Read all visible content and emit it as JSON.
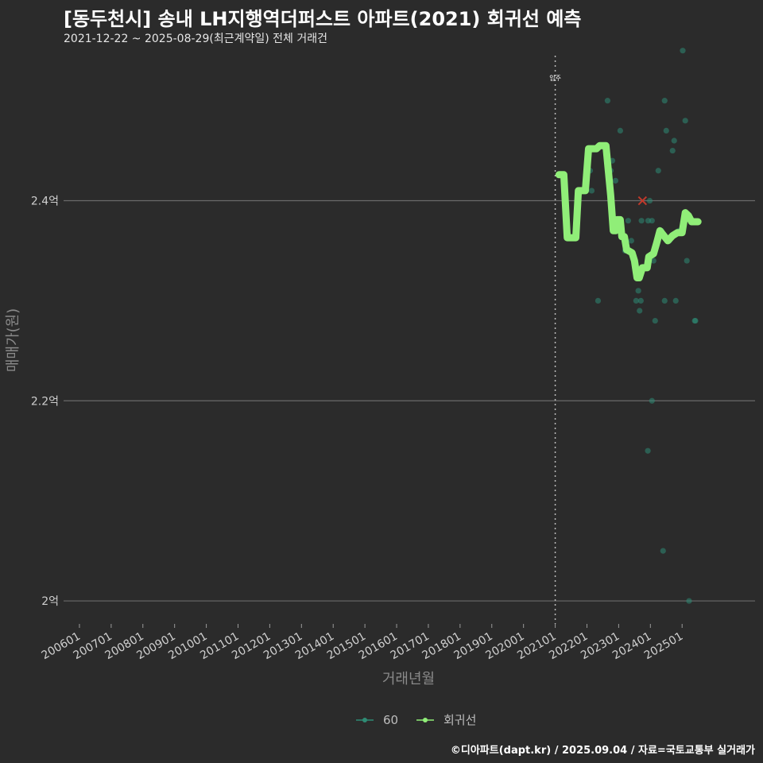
{
  "header": {
    "title": "[동두천시] 송내 LH지행역더퍼스트 아파트(2021) 회귀선 예측",
    "subtitle": "2021-12-22 ~ 2025-08-29(최근계약일) 전체 거래건"
  },
  "footer": {
    "credit": "©디아파트(dapt.kr) / 2025.09.04 / 자료=국토교통부 실거래가"
  },
  "colors": {
    "background": "#2b2b2b",
    "grid": "#6a6a6a",
    "scatter": "#2e8b74",
    "regression": "#90ee78",
    "highlight": "#c0392b",
    "vline": "#bbbbbb"
  },
  "chart_data": {
    "type": "scatter",
    "title": "[동두천시] 송내 LH지행역더퍼스트 아파트(2021) 회귀선 예측",
    "subtitle": "2021-12-22 ~ 2025-08-29(최근계약일) 전체 거래건",
    "xlabel": "거래년월",
    "ylabel": "매매가(원)",
    "x_unit": "year_fraction",
    "xlim": [
      2005.5,
      2027.3
    ],
    "ylim": [
      1.977,
      2.545
    ],
    "x_ticks": [
      {
        "value": 2006.0,
        "label": "200601"
      },
      {
        "value": 2007.0,
        "label": "200701"
      },
      {
        "value": 2008.0,
        "label": "200801"
      },
      {
        "value": 2009.0,
        "label": "200901"
      },
      {
        "value": 2010.0,
        "label": "201001"
      },
      {
        "value": 2011.0,
        "label": "201101"
      },
      {
        "value": 2012.0,
        "label": "201201"
      },
      {
        "value": 2013.0,
        "label": "201301"
      },
      {
        "value": 2014.0,
        "label": "201401"
      },
      {
        "value": 2015.0,
        "label": "201501"
      },
      {
        "value": 2016.0,
        "label": "201601"
      },
      {
        "value": 2017.0,
        "label": "201701"
      },
      {
        "value": 2018.0,
        "label": "201801"
      },
      {
        "value": 2019.0,
        "label": "201901"
      },
      {
        "value": 2020.0,
        "label": "202001"
      },
      {
        "value": 2021.0,
        "label": "202101"
      },
      {
        "value": 2022.0,
        "label": "202201"
      },
      {
        "value": 2023.0,
        "label": "202301"
      },
      {
        "value": 2024.0,
        "label": "202401"
      },
      {
        "value": 2025.0,
        "label": "202501"
      }
    ],
    "y_ticks": [
      {
        "value": 2.0,
        "label": "2억"
      },
      {
        "value": 2.2,
        "label": "2.2억"
      },
      {
        "value": 2.4,
        "label": "2.4억"
      }
    ],
    "grid": true,
    "legend_position": "bottom",
    "annotations": [
      {
        "type": "vline",
        "x": 2021.0,
        "label": "입주"
      },
      {
        "type": "x-marker",
        "x": 2023.75,
        "y": 2.4
      }
    ],
    "series": [
      {
        "name": "60",
        "type": "scatter",
        "color": "#2e8b74",
        "points": [
          [
            2022.1,
            2.43
          ],
          [
            2022.15,
            2.41
          ],
          [
            2022.6,
            2.45
          ],
          [
            2022.75,
            2.43
          ],
          [
            2022.8,
            2.44
          ],
          [
            2022.9,
            2.42
          ],
          [
            2023.05,
            2.47
          ],
          [
            2023.2,
            2.35
          ],
          [
            2023.3,
            2.38
          ],
          [
            2023.4,
            2.36
          ],
          [
            2023.55,
            2.3
          ],
          [
            2023.62,
            2.31
          ],
          [
            2023.66,
            2.29
          ],
          [
            2023.72,
            2.38
          ],
          [
            2023.7,
            2.3
          ],
          [
            2023.93,
            2.38
          ],
          [
            2023.98,
            2.4
          ],
          [
            2024.05,
            2.38
          ],
          [
            2024.1,
            2.34
          ],
          [
            2024.15,
            2.28
          ],
          [
            2024.25,
            2.43
          ],
          [
            2024.35,
            2.37
          ],
          [
            2024.45,
            2.3
          ],
          [
            2024.5,
            2.47
          ],
          [
            2024.6,
            2.36
          ],
          [
            2024.7,
            2.45
          ],
          [
            2024.75,
            2.46
          ],
          [
            2024.8,
            2.3
          ],
          [
            2024.9,
            2.37
          ],
          [
            2025.1,
            2.48
          ],
          [
            2025.15,
            2.34
          ],
          [
            2025.4,
            2.28
          ],
          [
            2025.42,
            2.28
          ],
          [
            2022.35,
            2.3
          ],
          [
            2022.65,
            2.5
          ],
          [
            2024.45,
            2.5
          ],
          [
            2025.02,
            2.55
          ],
          [
            2023.92,
            2.15
          ],
          [
            2024.05,
            2.2
          ],
          [
            2024.4,
            2.05
          ],
          [
            2025.22,
            2.0
          ]
        ]
      },
      {
        "name": "회귀선",
        "type": "line",
        "color": "#90ee78",
        "points": [
          [
            2021.12,
            2.426
          ],
          [
            2021.27,
            2.426
          ],
          [
            2021.38,
            2.363
          ],
          [
            2021.65,
            2.363
          ],
          [
            2021.73,
            2.41
          ],
          [
            2021.95,
            2.41
          ],
          [
            2022.05,
            2.452
          ],
          [
            2022.3,
            2.452
          ],
          [
            2022.4,
            2.455
          ],
          [
            2022.6,
            2.455
          ],
          [
            2022.75,
            2.405
          ],
          [
            2022.83,
            2.37
          ],
          [
            2022.9,
            2.37
          ],
          [
            2022.95,
            2.381
          ],
          [
            2023.05,
            2.381
          ],
          [
            2023.1,
            2.364
          ],
          [
            2023.18,
            2.364
          ],
          [
            2023.25,
            2.351
          ],
          [
            2023.42,
            2.348
          ],
          [
            2023.5,
            2.34
          ],
          [
            2023.58,
            2.323
          ],
          [
            2023.65,
            2.323
          ],
          [
            2023.75,
            2.333
          ],
          [
            2023.9,
            2.333
          ],
          [
            2023.95,
            2.344
          ],
          [
            2024.1,
            2.347
          ],
          [
            2024.2,
            2.358
          ],
          [
            2024.3,
            2.37
          ],
          [
            2024.55,
            2.36
          ],
          [
            2024.7,
            2.365
          ],
          [
            2024.85,
            2.368
          ],
          [
            2025.0,
            2.368
          ],
          [
            2025.1,
            2.388
          ],
          [
            2025.2,
            2.385
          ],
          [
            2025.3,
            2.379
          ],
          [
            2025.5,
            2.379
          ]
        ]
      }
    ]
  }
}
